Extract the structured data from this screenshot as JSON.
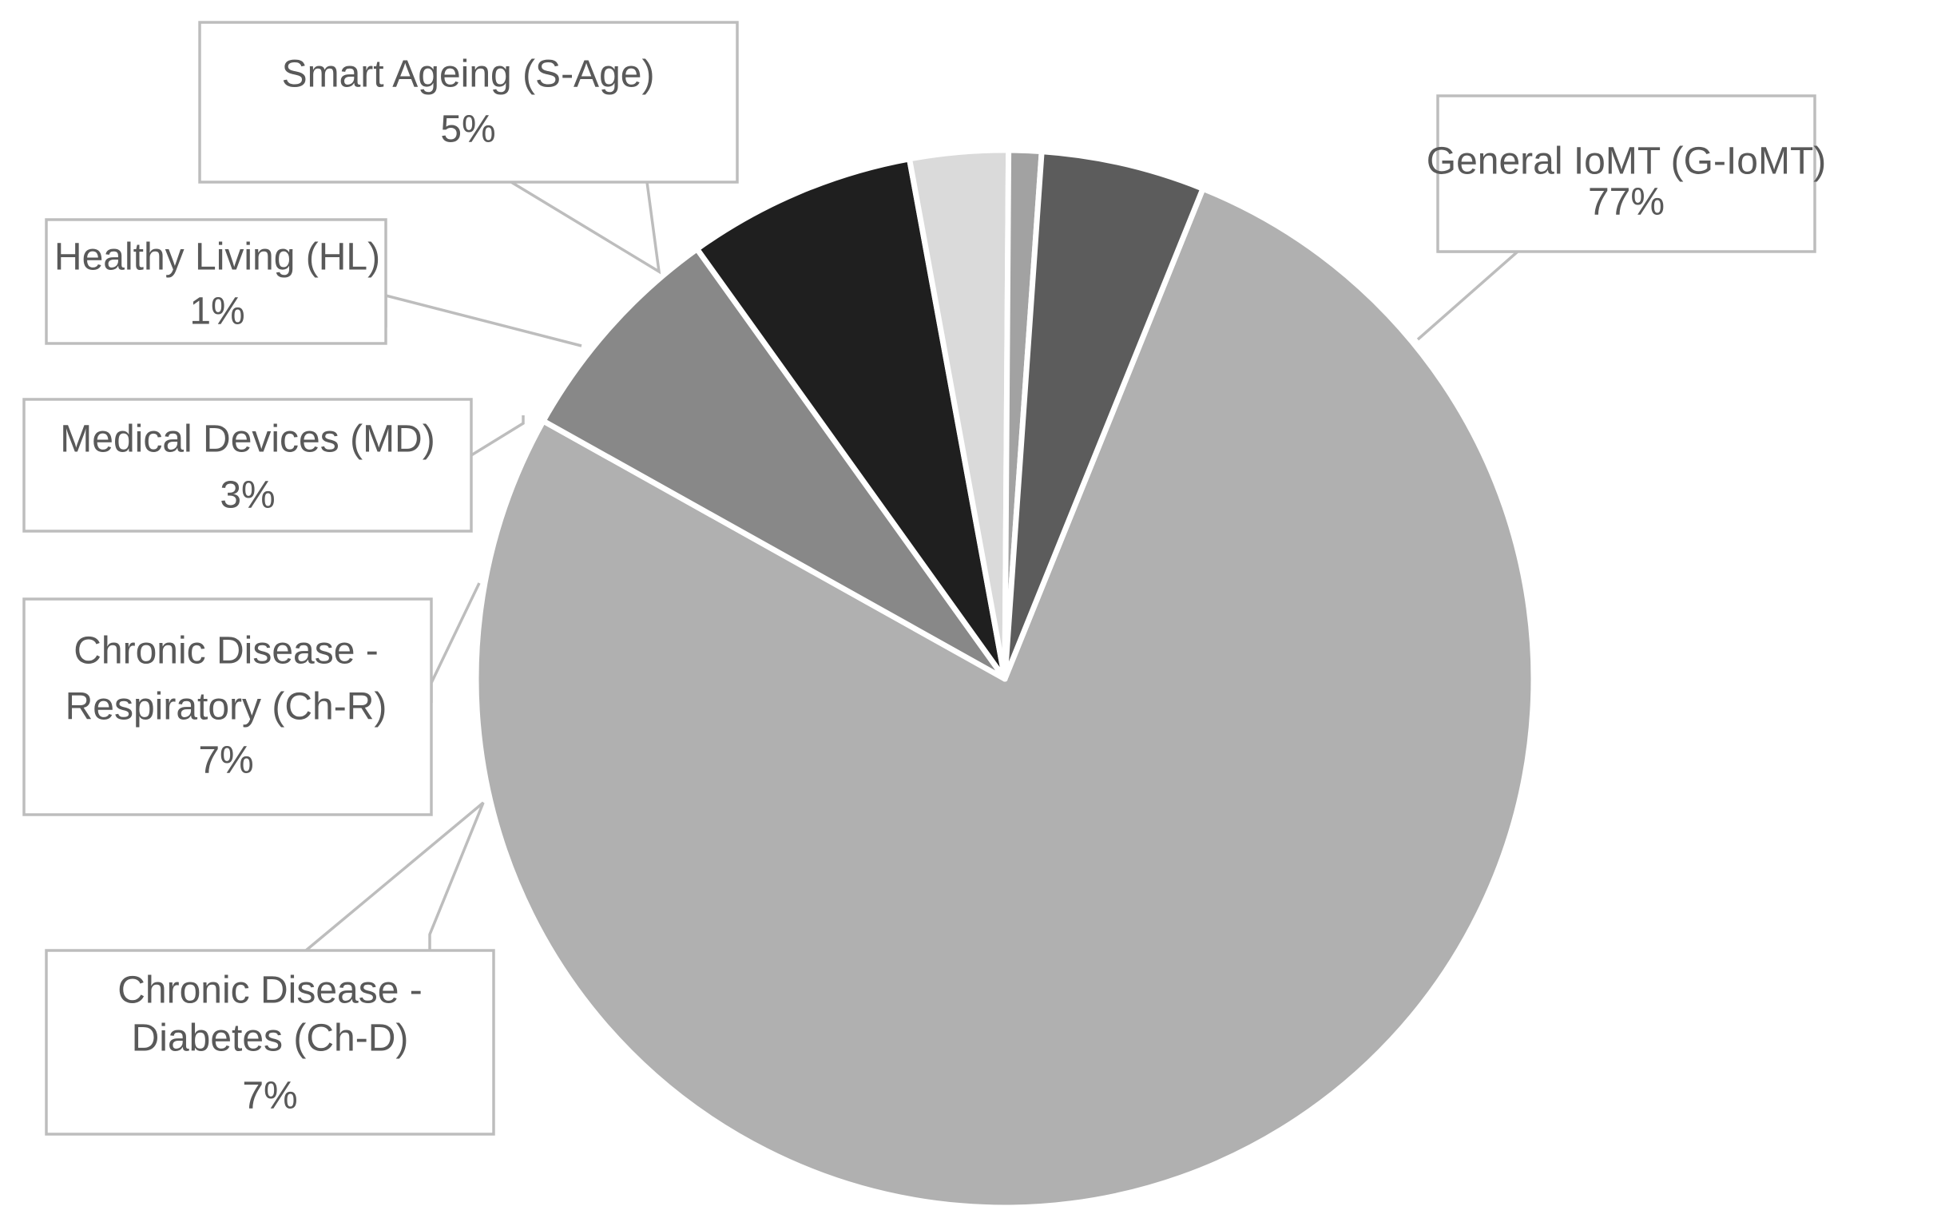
{
  "chart_data": {
    "type": "pie",
    "title": "",
    "slices": [
      {
        "label": [
          "General IoMT (G-IoMT)"
        ],
        "value": 77,
        "value_label": "77%",
        "color": "#b0b0b0"
      },
      {
        "label": [
          "Chronic Disease -",
          "Diabetes (Ch-D)"
        ],
        "value": 7,
        "value_label": "7%",
        "color": "#888888"
      },
      {
        "label": [
          "Chronic Disease -",
          "Respiratory (Ch-R)"
        ],
        "value": 7,
        "value_label": "7%",
        "color": "#1f1f1f"
      },
      {
        "label": [
          "Medical Devices (MD)"
        ],
        "value": 3,
        "value_label": "3%",
        "color": "#dadada"
      },
      {
        "label": [
          "Healthy Living (HL)"
        ],
        "value": 1,
        "value_label": "1%",
        "color": "#a2a2a2"
      },
      {
        "label": [
          "Smart Ageing (S-Age)"
        ],
        "value": 5,
        "value_label": "5%",
        "color": "#5c5c5c"
      }
    ],
    "legend": "none",
    "data_labels": "callouts"
  }
}
